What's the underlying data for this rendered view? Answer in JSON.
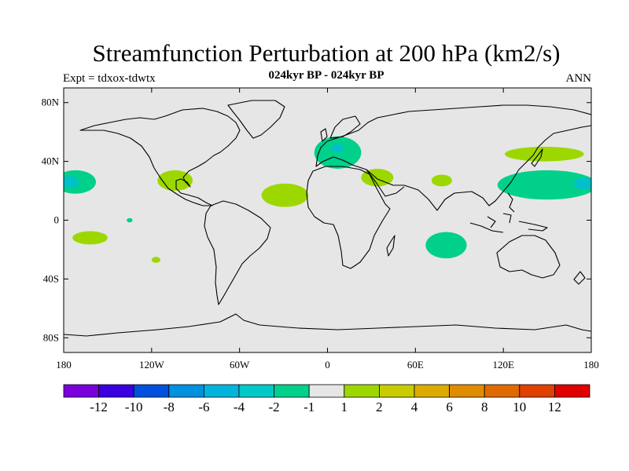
{
  "header": {
    "title": "Streamfunction Perturbation at 200 hPa (km2/s)",
    "left_label": "Expt = tdxox-tdwtx",
    "center_label": "024kyr BP - 024kyr BP",
    "right_label": "ANN"
  },
  "map": {
    "projection": "cylindrical-equidistant",
    "lon_range": [
      -180,
      180
    ],
    "lat_range": [
      -90,
      90
    ],
    "background_color": "#e6e6e6",
    "y_ticks": [
      {
        "lat": 80,
        "label": "80N"
      },
      {
        "lat": 40,
        "label": "40N"
      },
      {
        "lat": 0,
        "label": "0"
      },
      {
        "lat": -40,
        "label": "40S"
      },
      {
        "lat": -80,
        "label": "80S"
      }
    ],
    "x_ticks": [
      {
        "lon": -180,
        "label": "180"
      },
      {
        "lon": -120,
        "label": "120W"
      },
      {
        "lon": -60,
        "label": "60W"
      },
      {
        "lon": 0,
        "label": "0"
      },
      {
        "lon": 60,
        "label": "60E"
      },
      {
        "lon": 120,
        "label": "120E"
      },
      {
        "lon": 180,
        "label": "180"
      }
    ],
    "anomalies": [
      {
        "name": "north-pacific-west-negative",
        "lon": -172,
        "lat": 26,
        "rlon": 14,
        "rlat": 8,
        "color": "#00d08a"
      },
      {
        "name": "north-pacific-west-core",
        "lon": -176,
        "lat": 26,
        "rlon": 6,
        "rlat": 4,
        "color": "#00c0c8"
      },
      {
        "name": "south-pacific-positive",
        "lon": -162,
        "lat": -12,
        "rlon": 12,
        "rlat": 4.5,
        "color": "#9cd800"
      },
      {
        "name": "hawaii-dot",
        "lon": -135,
        "lat": 0,
        "rlon": 2,
        "rlat": 1.5,
        "color": "#00d08a"
      },
      {
        "name": "south-pacific-dot",
        "lon": -117,
        "lat": -27,
        "rlon": 3,
        "rlat": 2,
        "color": "#9cd800"
      },
      {
        "name": "mexico-positive",
        "lon": -104,
        "lat": 27,
        "rlon": 12,
        "rlat": 7,
        "color": "#9cd800"
      },
      {
        "name": "atlantic-positive",
        "lon": -29,
        "lat": 17,
        "rlon": 16,
        "rlat": 8,
        "color": "#9cd800"
      },
      {
        "name": "europe-negative",
        "lon": 7,
        "lat": 46,
        "rlon": 16,
        "rlat": 11,
        "color": "#00d08a"
      },
      {
        "name": "europe-core",
        "lon": 7,
        "lat": 49,
        "rlon": 4,
        "rlat": 3,
        "color": "#00c0c8"
      },
      {
        "name": "mediterranean-positive",
        "lon": 34,
        "lat": 29,
        "rlon": 11,
        "rlat": 6,
        "color": "#9cd800"
      },
      {
        "name": "arabian-positive",
        "lon": 78,
        "lat": 27,
        "rlon": 7,
        "rlat": 4,
        "color": "#9cd800"
      },
      {
        "name": "indian-ocean-negative",
        "lon": 81,
        "lat": -17,
        "rlon": 14,
        "rlat": 9,
        "color": "#00d08a"
      },
      {
        "name": "japan-positive",
        "lon": 148,
        "lat": 45,
        "rlon": 27,
        "rlat": 5,
        "color": "#9cd800"
      },
      {
        "name": "west-pacific-negative",
        "lon": 150,
        "lat": 24,
        "rlon": 34,
        "rlat": 10,
        "color": "#00d08a"
      },
      {
        "name": "west-pacific-core",
        "lon": 175,
        "lat": 25,
        "rlon": 7,
        "rlat": 4,
        "color": "#00c0c8"
      }
    ]
  },
  "colorbar": {
    "colors": [
      "#7a00dc",
      "#3b00e0",
      "#0050dc",
      "#0090e0",
      "#00b4dc",
      "#00c8c8",
      "#00d08a",
      "#e6e6e6",
      "#9cd800",
      "#c8cc00",
      "#dcaa00",
      "#e08c00",
      "#e06a00",
      "#e04000",
      "#e00000"
    ],
    "labels": [
      "-12",
      "-10",
      "-8",
      "-6",
      "-4",
      "-2",
      "-1",
      "1",
      "2",
      "4",
      "6",
      "8",
      "10",
      "12"
    ]
  }
}
